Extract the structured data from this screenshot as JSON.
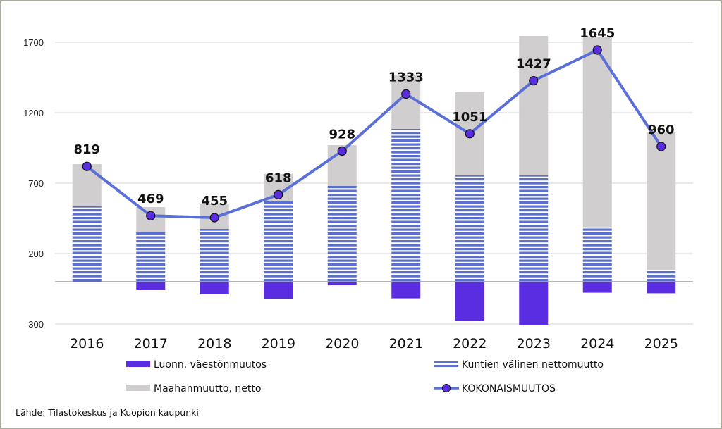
{
  "chart_data": {
    "type": "bar",
    "subtype": "stacked bar with line",
    "title": "",
    "xlabel": "",
    "ylabel": "",
    "ylim": [
      -300,
      1700
    ],
    "yticks": [
      -300,
      200,
      700,
      1200,
      1700
    ],
    "grid": true,
    "categories": [
      "2016",
      "2017",
      "2018",
      "2019",
      "2020",
      "2021",
      "2022",
      "2023",
      "2024",
      "2025"
    ],
    "series": [
      {
        "name": "Luonn. väestönmuutos",
        "kind": "bar",
        "color": "#5a2ee0",
        "values": [
          5,
          -55,
          -90,
          -120,
          -25,
          -118,
          -275,
          -305,
          -78,
          -82
        ]
      },
      {
        "name": "Kuntien välinen nettomuutto",
        "kind": "bar-striped",
        "color": "#5b6fcf",
        "values": [
          530,
          350,
          375,
          575,
          680,
          1085,
          755,
          755,
          390,
          85
        ]
      },
      {
        "name": "Maahanmuutto, netto",
        "kind": "bar",
        "color": "#d0cece",
        "values": [
          300,
          180,
          175,
          190,
          290,
          385,
          590,
          990,
          1345,
          975
        ]
      },
      {
        "name": "KOKONAISMUUTOS",
        "kind": "line",
        "color": "#5b6fd8",
        "marker_color": "#5a2ee0",
        "values": [
          819,
          469,
          455,
          618,
          928,
          1333,
          1051,
          1427,
          1645,
          960
        ]
      }
    ],
    "data_labels": [
      "819",
      "469",
      "455",
      "618",
      "928",
      "1333",
      "1051",
      "1427",
      "1645",
      "960"
    ],
    "legend_position": "bottom"
  },
  "legend": {
    "items": [
      {
        "label": "Luonn. väestönmuutos"
      },
      {
        "label": "Kuntien välinen nettomuutto"
      },
      {
        "label": "Maahanmuutto, netto"
      },
      {
        "label": "KOKONAISMUUTOS"
      }
    ]
  },
  "source": "Lähde: Tilastokeskus ja Kuopion kaupunki"
}
